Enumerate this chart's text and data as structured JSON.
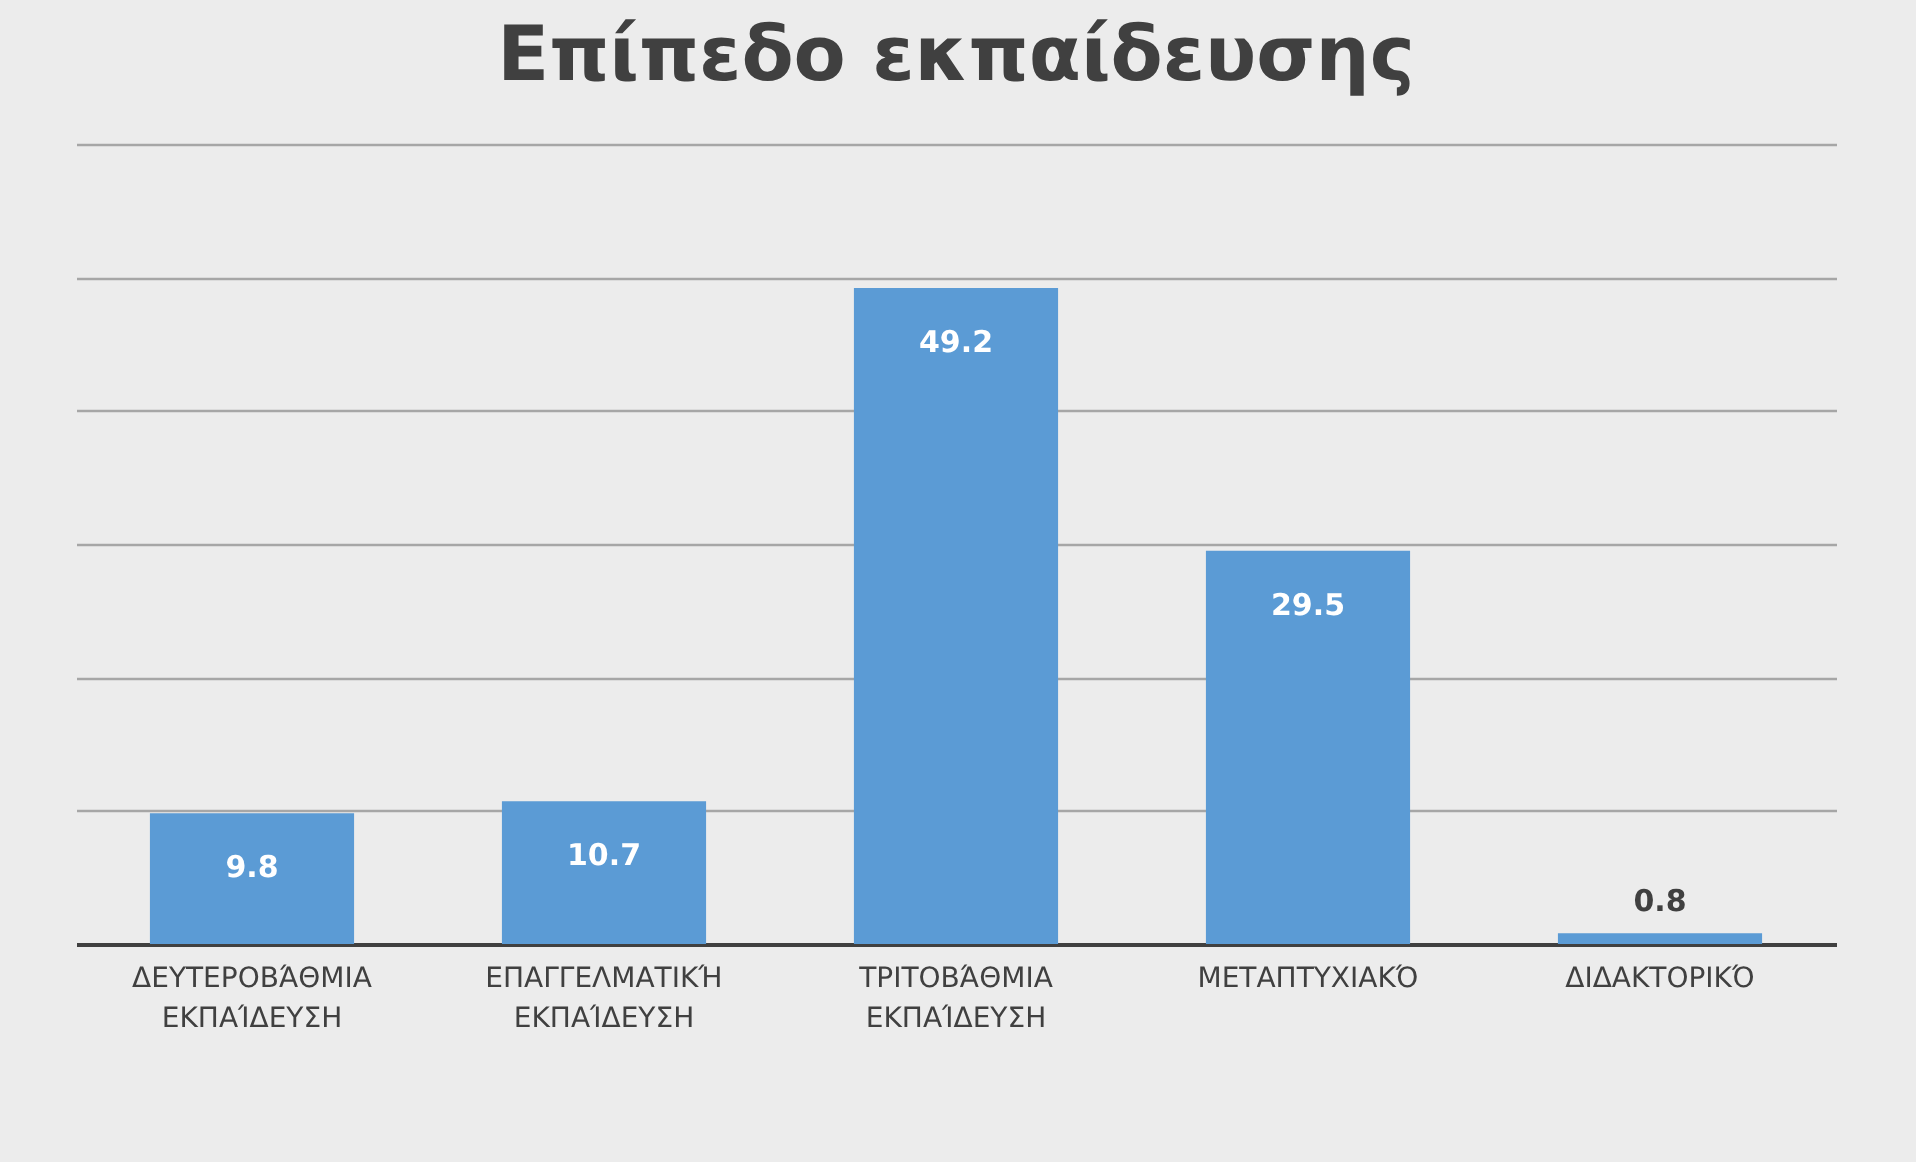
{
  "chart_data": {
    "type": "bar",
    "title": "Επίπεδο εκπαίδευσης",
    "categories": [
      "ΔΕΥΤΕΡΟΒΆΘΜΙΑ ΕΚΠΑΊΔΕΥΣΗ",
      "ΕΠΑΓΓΕΛΜΑΤΙΚΉ ΕΚΠΑΊΔΕΥΣΗ",
      "ΤΡΙΤΟΒΆΘΜΙΑ ΕΚΠΑΊΔΕΥΣΗ",
      "ΜΕΤΑΠΤΥΧΙΑΚΌ",
      "ΔΙΔΑΚΤΟΡΙΚΌ"
    ],
    "values": [
      9.8,
      10.7,
      49.2,
      29.5,
      0.8
    ],
    "color": "#5b9bd5",
    "data_labels": true,
    "ylim": [
      0,
      60
    ],
    "yticks": [
      {
        "value": 0,
        "label": null
      },
      {
        "value": 10,
        "label": null
      },
      {
        "value": 20,
        "label": null
      },
      {
        "value": 30,
        "label": null
      },
      {
        "value": 40,
        "label": null
      },
      {
        "value": 50,
        "label": null
      },
      {
        "value": 60,
        "label": null
      }
    ],
    "grid": "y",
    "tick_labels": "x"
  }
}
